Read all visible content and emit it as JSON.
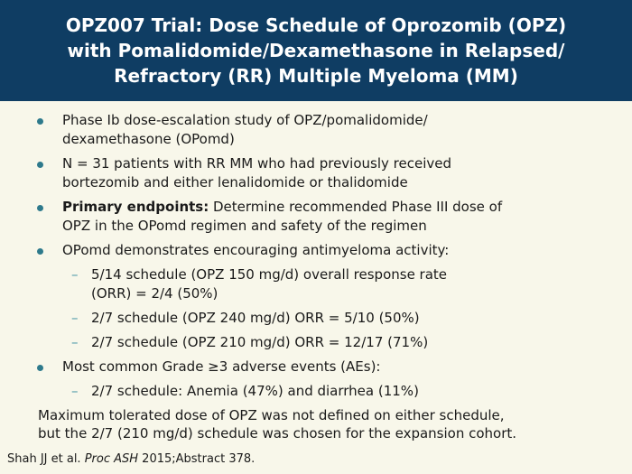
{
  "header": {
    "title_lines": [
      "OPZ007 Trial: Dose Schedule of Oprozomib (OPZ)",
      "with Pomalidomide/Dexamethasone in Relapsed/",
      "Refractory (RR) Multiple Myeloma (MM)"
    ]
  },
  "bullets": [
    {
      "lines": [
        "Phase Ib dose-escalation study of OPZ/pomalidomide/",
        "dexamethasone (OPomd)"
      ]
    },
    {
      "lines": [
        "N = 31 patients with RR MM who had previously received",
        "bortezomib and either lenalidomide or thalidomide"
      ]
    },
    {
      "bold_prefix": "Primary endpoints:",
      "line1_rest": " Determine recommended Phase III dose of",
      "line2": "OPZ in the OPomd regimen and safety of the regimen"
    },
    {
      "text": "OPomd demonstrates encouraging antimyeloma activity:"
    },
    {
      "text": "Most common Grade ≥3 adverse events (AEs):"
    }
  ],
  "sub_bullets": {
    "activity": [
      {
        "lines": [
          "5/14 schedule (OPZ 150 mg/d) overall response rate",
          "(ORR) = 2/4 (50%)"
        ]
      },
      {
        "text": "2/7 schedule (OPZ 240 mg/d) ORR = 5/10 (50%)"
      },
      {
        "text": "2/7 schedule (OPZ 210 mg/d) ORR = 12/17 (71%)"
      }
    ],
    "adverse_events": [
      {
        "text": "2/7 schedule: Anemia (47%) and diarrhea (11%)"
      }
    ]
  },
  "closing": {
    "lines": [
      "Maximum tolerated dose of OPZ was not defined on either schedule,",
      "but the 2/7 (210 mg/d) schedule was chosen for the expansion cohort."
    ]
  },
  "citation": {
    "author": "Shah JJ et al. ",
    "journal": "Proc ASH",
    "rest": " 2015;Abstract 378."
  },
  "colors": {
    "header_bg": "#0f3d63",
    "page_bg": "#f8f7ea",
    "bullet": "#2e7a8c",
    "dash": "#4f9aa9"
  }
}
